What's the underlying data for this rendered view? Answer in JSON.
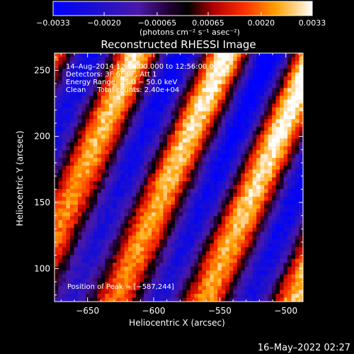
{
  "chart_data": {
    "type": "heatmap",
    "title": "Reconstructed RHESSI Image",
    "xlabel": "Heliocentric X (arcsec)",
    "ylabel": "Heliocentric Y (arcsec)",
    "xlim": [
      -675,
      -487
    ],
    "ylim": [
      75,
      263
    ],
    "x_ticks": [
      -650,
      -600,
      -550,
      -500
    ],
    "x_tick_labels": [
      "−650",
      "−600",
      "−550",
      "−500"
    ],
    "y_ticks": [
      100,
      150,
      200,
      250
    ],
    "y_tick_labels": [
      "100",
      "150",
      "200",
      "250"
    ],
    "colorbar": {
      "range": [
        -0.0033,
        0.0033
      ],
      "ticks": [
        -0.0033,
        -0.002,
        -0.00065,
        0.00065,
        0.002,
        0.0033
      ],
      "tick_labels": [
        "−0.0033",
        "−0.0020",
        "−0.00065",
        "0.00065",
        "0.0020",
        "0.0033"
      ],
      "units_label": "(photons cm⁻² s⁻¹ asec⁻²)",
      "colormap": "blue-purple-red-yellow-white"
    },
    "annotations": [
      "14–Aug–2014 12:50:00.000 to 12:56:00.000",
      "Detectors: 3F 6F 9F, Att 1",
      "Energy Range: 25.0 − 50.0 keV",
      "Clean     Total counts: 2.40e+04"
    ],
    "peak_label": "Position of Peak = [−587,244]",
    "peak": {
      "x": -587,
      "y": 244
    },
    "stripe_pattern": {
      "orientation": "diagonal",
      "bright_bands_at_top_x": [
        -665,
        -587,
        -520
      ],
      "bright_bands_at_bottom_x": [
        -658,
        -590,
        -520
      ]
    }
  },
  "footer": {
    "timestamp": "16–May–2022 02:27"
  },
  "colors": {
    "background": "#000000",
    "text": "#ffffff"
  }
}
